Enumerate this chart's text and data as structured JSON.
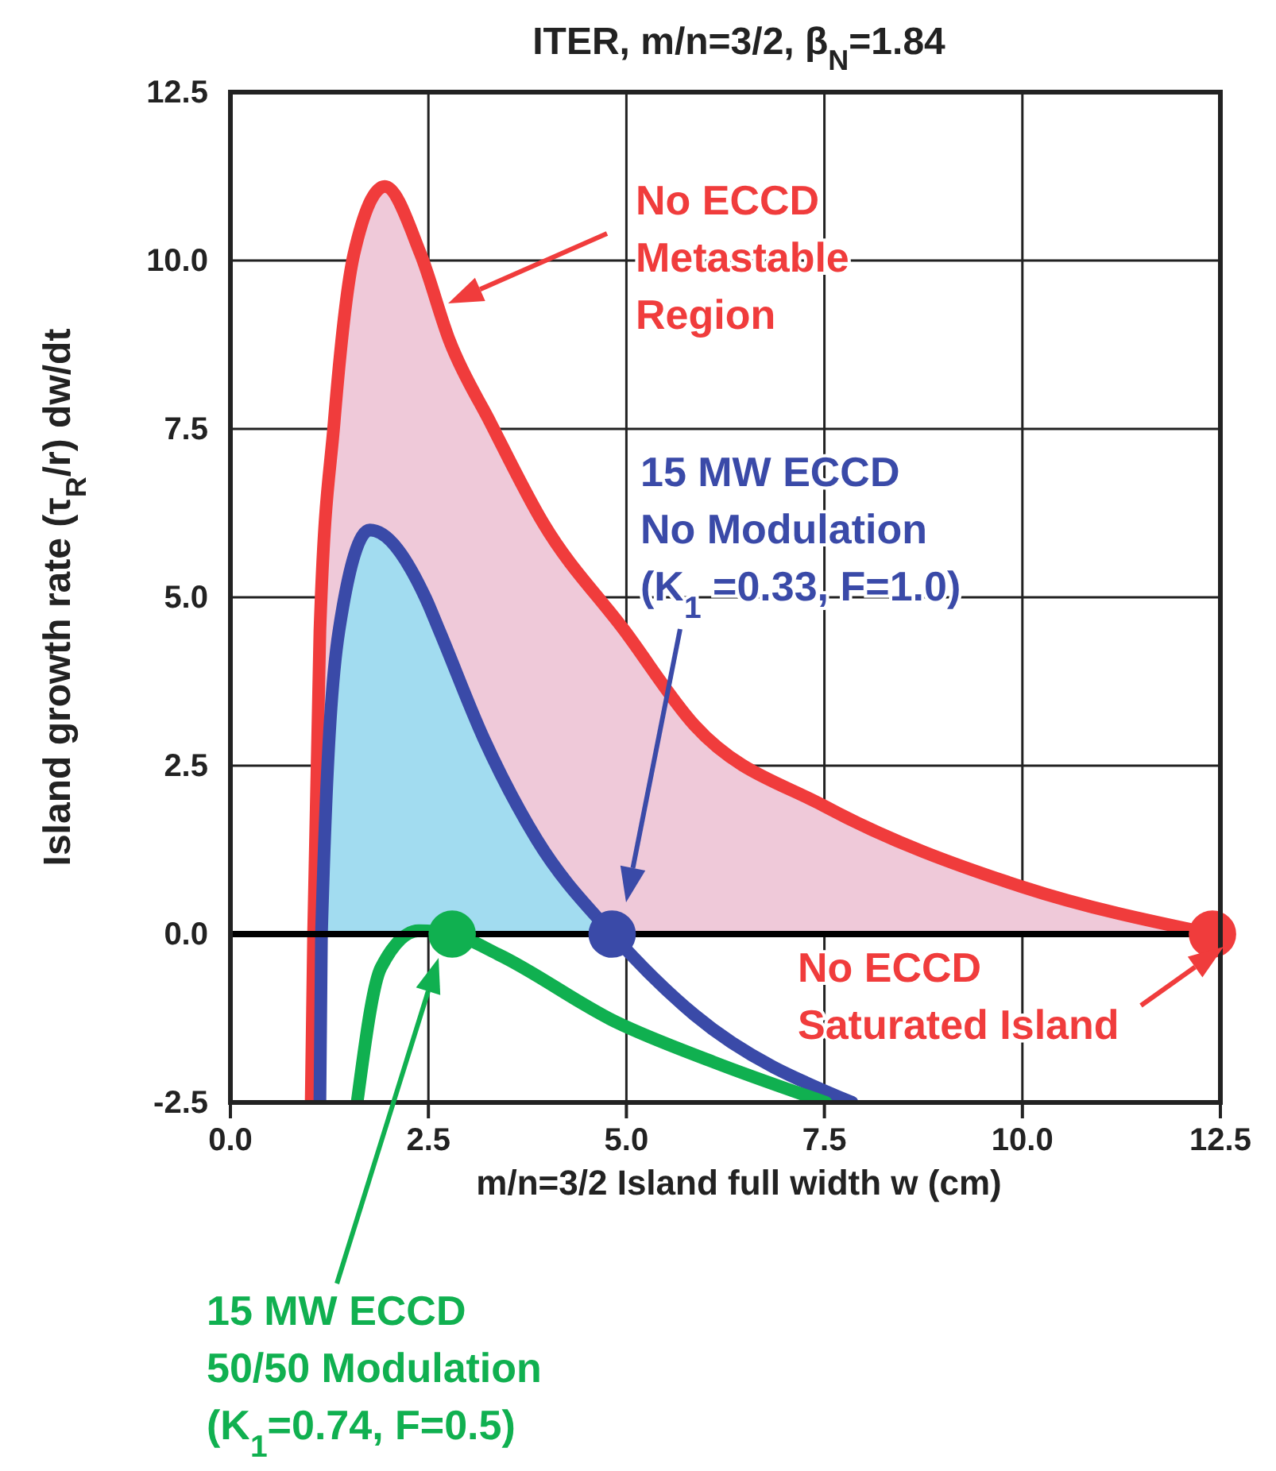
{
  "chart_data": {
    "type": "line",
    "title": "ITER, m/n=3/2, β$_{N}$=1.84",
    "xlabel": "m/n=3/2 Island full width w (cm)",
    "ylabel": "Island growth rate (τ$_{R}$/r) dw/dt",
    "xlim": [
      0,
      12.5
    ],
    "ylim": [
      -2.5,
      12.5
    ],
    "xticks": [
      {
        "value": 0,
        "label": "0.0"
      },
      {
        "value": 2.5,
        "label": "2.5"
      },
      {
        "value": 5,
        "label": "5.0"
      },
      {
        "value": 7.5,
        "label": "7.5"
      },
      {
        "value": 10,
        "label": "10.0"
      },
      {
        "value": 12.5,
        "label": "12.5"
      }
    ],
    "yticks": [
      {
        "value": -2.5,
        "label": "-2.5"
      },
      {
        "value": 0,
        "label": "0.0"
      },
      {
        "value": 2.5,
        "label": "2.5"
      },
      {
        "value": 5,
        "label": "5.0"
      },
      {
        "value": 7.5,
        "label": "7.5"
      },
      {
        "value": 10,
        "label": "10.0"
      },
      {
        "value": 12.5,
        "label": "12.5"
      }
    ],
    "grid": true,
    "line_style": "solid",
    "marker": "none",
    "series": [
      {
        "type": "area",
        "color": "#efc9d9",
        "x": [
          1.05,
          1.13,
          1.31,
          1.56,
          1.95,
          2.4,
          2.77,
          3.28,
          3.95,
          4.98,
          5.86,
          7.5,
          10.0,
          11.9
        ],
        "values": [
          0,
          4.5,
          7.6,
          10.1,
          11.1,
          10.1,
          8.8,
          7.6,
          6.1,
          4.5,
          3.1,
          1.9,
          0.7,
          0.15
        ]
      },
      {
        "type": "area",
        "color": "#a2dcf0",
        "x": [
          1.15,
          1.37,
          1.76,
          2.46,
          2.64,
          3.2,
          3.87,
          4.6
        ],
        "values": [
          0,
          4.5,
          6.0,
          5.0,
          4.5,
          2.9,
          1.4,
          0.3
        ]
      },
      {
        "color": "#f03c3c",
        "x": [
          1.02,
          1.05,
          1.13,
          1.31,
          1.56,
          1.95,
          2.4,
          2.77,
          3.28,
          3.95,
          4.98,
          5.86,
          7.5,
          10.0,
          12.4
        ],
        "values": [
          -2.5,
          0,
          4.5,
          7.6,
          10.1,
          11.1,
          10.1,
          8.8,
          7.6,
          6.1,
          4.5,
          3.1,
          1.9,
          0.7,
          0
        ]
      },
      {
        "color": "#3a4aa8",
        "x": [
          1.13,
          1.15,
          1.37,
          1.76,
          2.46,
          2.64,
          3.2,
          3.87,
          4.82,
          5.86,
          7.85
        ],
        "values": [
          -2.5,
          0,
          4.5,
          6.0,
          5.0,
          4.5,
          2.9,
          1.4,
          0,
          -1.2,
          -2.5
        ]
      },
      {
        "color": "#10b050",
        "x": [
          1.6,
          1.9,
          2.38,
          2.8,
          3.38,
          4.86,
          6.1,
          7.52
        ],
        "values": [
          -2.5,
          -0.5,
          0.05,
          0,
          -0.3,
          -1.3,
          -1.9,
          -2.5
        ]
      },
      {
        "type": "scatter",
        "marker": "circle",
        "x": [
          12.4,
          4.82,
          2.8
        ],
        "values": [
          0,
          0,
          0
        ],
        "colors": [
          "#f03c3c",
          "#3a4aa8",
          "#10b050"
        ]
      }
    ],
    "ref_lines": [
      {
        "axis": "y",
        "value": 0,
        "color": "#000000"
      }
    ],
    "annotations": [
      "No ECCD\nMetastable\nRegion",
      "15 MW ECCD\nNo Modulation\n(K$_{1}$ =0.33, F=1.0)",
      "No ECCD\nSaturated Island",
      "15 MW ECCD\n50/50 Modulation\n(K$_{1}$=0.74, F=0.5)"
    ]
  }
}
